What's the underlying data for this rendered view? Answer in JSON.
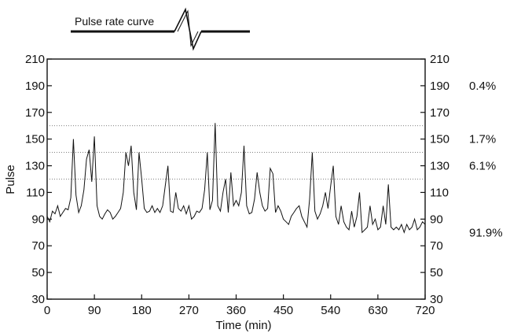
{
  "chart_data": {
    "type": "line",
    "title": "Pulse rate curve",
    "xlabel": "Time (min)",
    "ylabel": "Pulse",
    "xlim": [
      0,
      720
    ],
    "ylim": [
      30,
      210
    ],
    "x_ticks": [
      0,
      90,
      180,
      270,
      360,
      450,
      540,
      630,
      720
    ],
    "y_ticks": [
      30,
      50,
      70,
      90,
      110,
      130,
      150,
      170,
      190,
      210
    ],
    "x_tick_labels": [
      "0",
      "90",
      "180",
      "270",
      "360",
      "450",
      "540",
      "630",
      "720"
    ],
    "y_tick_labels": [
      "30",
      "50",
      "70",
      "90",
      "110",
      "130",
      "150",
      "170",
      "190",
      "210"
    ],
    "right_y_tick_labels": [
      "30",
      "50",
      "70",
      "90",
      "110",
      "130",
      "150",
      "170",
      "190",
      "210"
    ],
    "threshold_lines": [
      120,
      140,
      160
    ],
    "band_percentages": [
      {
        "label": "0.4%",
        "y": 190
      },
      {
        "label": "1.7%",
        "y": 150
      },
      {
        "label": "6.1%",
        "y": 130
      },
      {
        "label": "91.9%",
        "y": 80
      }
    ],
    "series": [
      {
        "x": [
          0,
          5,
          10,
          15,
          20,
          25,
          30,
          35,
          40,
          45,
          50,
          55,
          60,
          65,
          70,
          75,
          80,
          85,
          90,
          95,
          100,
          105,
          110,
          115,
          120,
          125,
          130,
          135,
          140,
          145,
          150,
          155,
          160,
          165,
          170,
          175,
          180,
          185,
          190,
          195,
          200,
          205,
          210,
          215,
          220,
          225,
          230,
          235,
          240,
          245,
          250,
          255,
          260,
          265,
          270,
          275,
          280,
          285,
          290,
          295,
          300,
          305,
          310,
          315,
          320,
          325,
          330,
          335,
          340,
          345,
          350,
          355,
          360,
          365,
          370,
          375,
          380,
          385,
          390,
          395,
          400,
          405,
          410,
          415,
          420,
          425,
          430,
          435,
          440,
          445,
          450,
          455,
          460,
          465,
          470,
          475,
          480,
          485,
          490,
          495,
          500,
          505,
          510,
          515,
          520,
          525,
          530,
          535,
          540,
          545,
          550,
          555,
          560,
          565,
          570,
          575,
          580,
          585,
          590,
          595,
          600,
          605,
          610,
          615,
          620,
          625,
          630,
          635,
          640,
          645,
          650,
          655,
          660,
          665,
          670,
          675,
          680,
          685,
          690,
          695,
          700,
          705,
          710,
          715,
          720
        ],
        "values": [
          92,
          88,
          96,
          94,
          100,
          92,
          95,
          98,
          97,
          106,
          150,
          108,
          95,
          100,
          112,
          135,
          142,
          118,
          152,
          100,
          92,
          90,
          94,
          97,
          95,
          90,
          92,
          95,
          98,
          110,
          140,
          130,
          145,
          110,
          97,
          140,
          120,
          98,
          95,
          96,
          100,
          95,
          98,
          95,
          100,
          115,
          130,
          96,
          95,
          110,
          98,
          96,
          100,
          94,
          100,
          90,
          92,
          96,
          95,
          98,
          112,
          140,
          97,
          104,
          162,
          100,
          96,
          110,
          120,
          95,
          125,
          100,
          104,
          100,
          110,
          145,
          100,
          94,
          95,
          105,
          125,
          110,
          100,
          96,
          98,
          128,
          124,
          95,
          100,
          96,
          90,
          88,
          86,
          92,
          95,
          98,
          100,
          92,
          88,
          84,
          105,
          140,
          96,
          90,
          94,
          100,
          110,
          98,
          115,
          130,
          92,
          86,
          100,
          88,
          84,
          82,
          96,
          84,
          92,
          110,
          80,
          82,
          84,
          100,
          86,
          90,
          82,
          84,
          100,
          86,
          116,
          84,
          82,
          84,
          82,
          86,
          80,
          86,
          82,
          84,
          90,
          82,
          84,
          88,
          86
        ]
      }
    ]
  }
}
